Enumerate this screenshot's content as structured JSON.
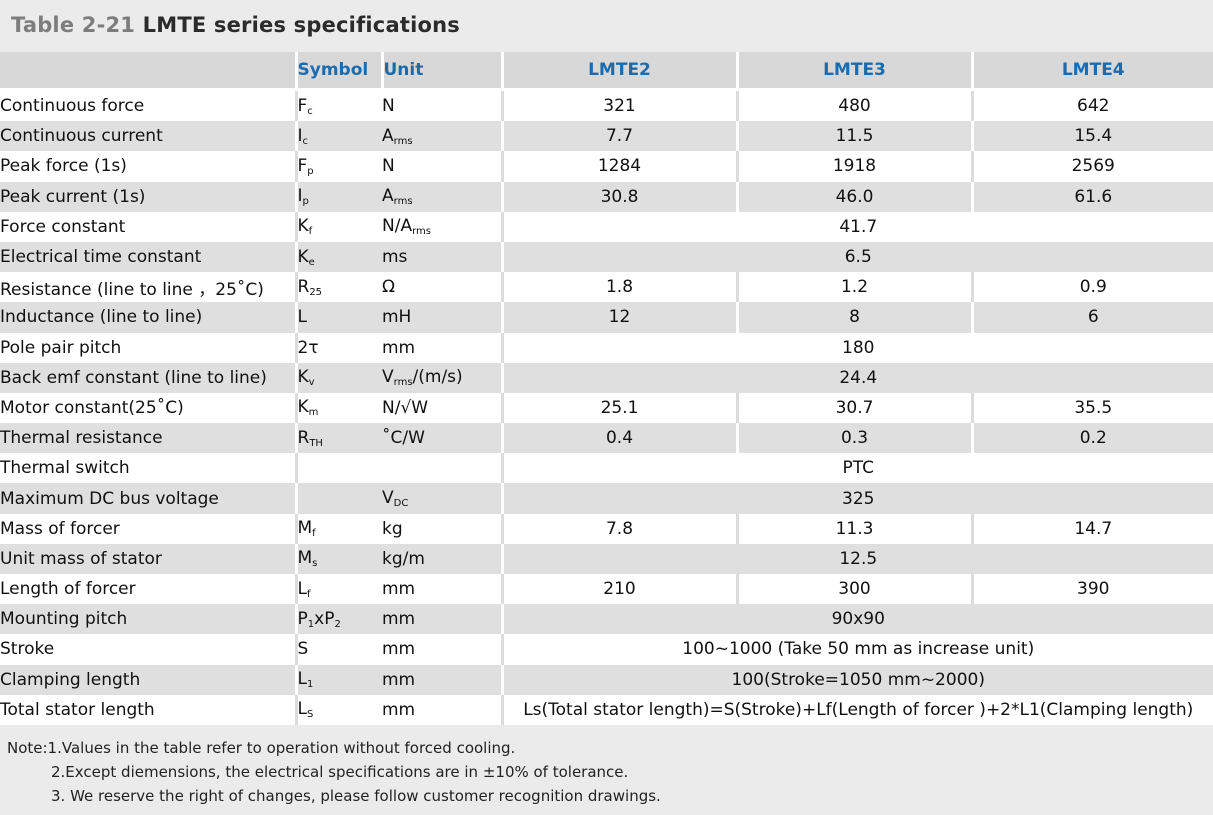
{
  "title": {
    "prefix": "Table 2-21",
    "main": "LMTE series specifications"
  },
  "header": {
    "param": "",
    "symbol": "Symbol",
    "unit": "Unit",
    "models": [
      "LMTE2",
      "LMTE3",
      "LMTE4"
    ]
  },
  "rows": [
    {
      "param": "Continuous force",
      "sym": "F",
      "sym_sub": "c",
      "unit": "N",
      "unit_sub": "",
      "unit_suffix": "",
      "values": [
        "321",
        "480",
        "642"
      ]
    },
    {
      "param": "Continuous current",
      "sym": "I",
      "sym_sub": "c",
      "unit": "A",
      "unit_sub": "rms",
      "unit_suffix": "",
      "values": [
        "7.7",
        "11.5",
        "15.4"
      ]
    },
    {
      "param": "Peak force (1s)",
      "sym": "F",
      "sym_sub": "p",
      "unit": "N",
      "unit_sub": "",
      "unit_suffix": "",
      "values": [
        "1284",
        "1918",
        "2569"
      ]
    },
    {
      "param": "Peak current (1s)",
      "sym": "I",
      "sym_sub": "p",
      "unit": "A",
      "unit_sub": "rms",
      "unit_suffix": "",
      "values": [
        "30.8",
        "46.0",
        "61.6"
      ]
    },
    {
      "param": "Force constant",
      "sym": "K",
      "sym_sub": "f",
      "unit": "N/A",
      "unit_sub": "rms",
      "unit_suffix": "",
      "span": "41.7"
    },
    {
      "param": "Electrical time constant",
      "sym": "K",
      "sym_sub": "e",
      "unit": "ms",
      "unit_sub": "",
      "unit_suffix": "",
      "span": "6.5"
    },
    {
      "param": "Resistance (line to line ，25˚C)",
      "sym": "R",
      "sym_sub": "25",
      "unit": "Ω",
      "unit_sub": "",
      "unit_suffix": "",
      "values": [
        "1.8",
        "1.2",
        "0.9"
      ]
    },
    {
      "param": "Inductance (line to line)",
      "sym": "L",
      "sym_sub": "",
      "unit": "mH",
      "unit_sub": "",
      "unit_suffix": "",
      "values": [
        "12",
        "8",
        "6"
      ]
    },
    {
      "param": "Pole pair pitch",
      "sym": "2τ",
      "sym_sub": "",
      "unit": "mm",
      "unit_sub": "",
      "unit_suffix": "",
      "span": "180"
    },
    {
      "param": "Back emf constant (line to line)",
      "sym": "K",
      "sym_sub": "v",
      "unit": "V",
      "unit_sub": "rms",
      "unit_suffix": "/(m/s)",
      "span": "24.4"
    },
    {
      "param": "Motor constant(25˚C)",
      "sym": "K",
      "sym_sub": "m",
      "unit": "N/√W",
      "unit_sub": "",
      "unit_suffix": "",
      "values": [
        "25.1",
        "30.7",
        "35.5"
      ]
    },
    {
      "param": "Thermal resistance",
      "sym": "R",
      "sym_sub": "TH",
      "unit": "˚C/W",
      "unit_sub": "",
      "unit_suffix": "",
      "values": [
        "0.4",
        "0.3",
        "0.2"
      ]
    },
    {
      "param": "Thermal switch",
      "sym": "",
      "sym_sub": "",
      "unit": "",
      "unit_sub": "",
      "unit_suffix": "",
      "span": "PTC"
    },
    {
      "param": "Maximum DC bus voltage",
      "sym": "",
      "sym_sub": "",
      "unit": "V",
      "unit_sub": "DC",
      "unit_suffix": "",
      "span": "325"
    },
    {
      "param": "Mass of forcer",
      "sym": "M",
      "sym_sub": "f",
      "unit": "kg",
      "unit_sub": "",
      "unit_suffix": "",
      "values": [
        "7.8",
        "11.3",
        "14.7"
      ]
    },
    {
      "param": "Unit mass of stator",
      "sym": "M",
      "sym_sub": "s",
      "unit": "kg/m",
      "unit_sub": "",
      "unit_suffix": "",
      "span": "12.5"
    },
    {
      "param": "Length of forcer",
      "sym": "L",
      "sym_sub": "f",
      "unit": "mm",
      "unit_sub": "",
      "unit_suffix": "",
      "values": [
        "210",
        "300",
        "390"
      ]
    },
    {
      "param": "Mounting pitch",
      "sym": "P",
      "sym_sub": "1",
      "sym_mid": "xP",
      "sym_sub2": "2",
      "unit": "mm",
      "unit_sub": "",
      "unit_suffix": "",
      "span": "90x90"
    },
    {
      "param": "Stroke",
      "sym": "S",
      "sym_sub": "",
      "unit": "mm",
      "unit_sub": "",
      "unit_suffix": "",
      "span": "100~1000 (Take 50 mm as increase unit)"
    },
    {
      "param": "Clamping length",
      "sym": "L",
      "sym_sub": "1",
      "unit": "mm",
      "unit_sub": "",
      "unit_suffix": "",
      "span": "100(Stroke=1050 mm~2000)"
    },
    {
      "param": "Total stator length",
      "sym": "L",
      "sym_sub": "S",
      "unit": "mm",
      "unit_sub": "",
      "unit_suffix": "",
      "span": "Ls(Total stator length)=S(Stroke)+Lf(Length of forcer )+2*L1(Clamping length)"
    }
  ],
  "notes": [
    "Note:1.Values in the table refer to operation without forced cooling.",
    "2.Except diemensions, the electrical specifications are in ±10% of tolerance.",
    "3. We reserve the right of changes, please follow customer recognition drawings."
  ]
}
